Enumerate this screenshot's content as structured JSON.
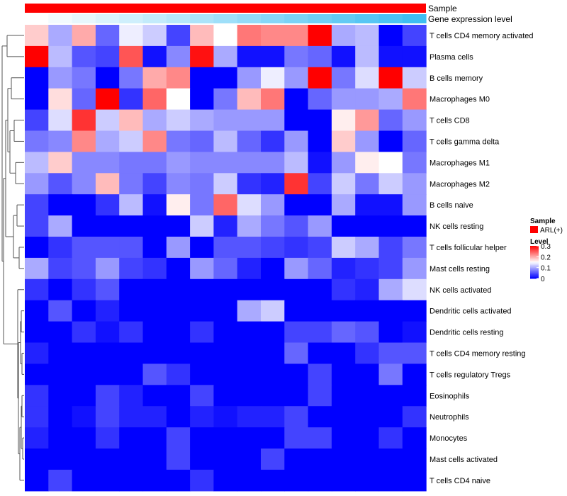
{
  "chart_data": {
    "type": "heatmap",
    "title": "",
    "annotation_tracks": [
      {
        "label": "Sample",
        "color": "#ff0000"
      },
      {
        "label": "Gene expression level",
        "gradient": [
          "#ffffff",
          "#3fbef2"
        ]
      }
    ],
    "rows": [
      "T cells CD4 memory activated",
      "Plasma cells",
      "B cells memory",
      "Macrophages M0",
      "T cells CD8",
      "T cells gamma delta",
      "Macrophages M1",
      "Macrophages M2",
      "B cells naive",
      "NK cells resting",
      "T cells follicular helper",
      "Mast cells resting",
      "NK cells activated",
      "Dendritic cells activated",
      "Dendritic cells resting",
      "T cells CD4 memory resting",
      "T cells regulatory  Tregs",
      "Eosinophils",
      "Neutrophils",
      "Monocytes",
      "Mast cells activated",
      "T cells CD4 naive"
    ],
    "n_columns": 17,
    "values": [
      [
        0.18,
        0.1,
        0.2,
        0.06,
        0.14,
        0.12,
        0.04,
        0.19,
        0.15,
        0.23,
        0.22,
        0.22,
        0.3,
        0.1,
        0.11,
        0.0,
        0.04
      ],
      [
        0.3,
        0.11,
        0.05,
        0.04,
        0.25,
        0.01,
        0.08,
        0.29,
        0.1,
        0.01,
        0.01,
        0.07,
        0.06,
        0.01,
        0.11,
        0.01,
        0.01
      ],
      [
        0.0,
        0.09,
        0.07,
        0.0,
        0.07,
        0.2,
        0.22,
        0.0,
        0.0,
        0.09,
        0.14,
        0.09,
        0.3,
        0.07,
        0.13,
        0.3,
        0.12
      ],
      [
        0.0,
        0.17,
        0.06,
        0.3,
        0.03,
        0.24,
        0.15,
        0.0,
        0.07,
        0.19,
        0.23,
        0.0,
        0.06,
        0.09,
        0.09,
        0.1,
        0.23
      ],
      [
        0.04,
        0.13,
        0.27,
        0.12,
        0.19,
        0.1,
        0.12,
        0.1,
        0.09,
        0.09,
        0.09,
        0.0,
        0.0,
        0.16,
        0.21,
        0.06,
        0.09
      ],
      [
        0.07,
        0.08,
        0.22,
        0.1,
        0.12,
        0.22,
        0.07,
        0.06,
        0.11,
        0.06,
        0.03,
        0.09,
        0.0,
        0.18,
        0.09,
        0.0,
        0.06
      ],
      [
        0.11,
        0.18,
        0.08,
        0.08,
        0.07,
        0.07,
        0.09,
        0.08,
        0.08,
        0.08,
        0.08,
        0.11,
        0.01,
        0.09,
        0.16,
        0.15,
        0.07
      ],
      [
        0.09,
        0.05,
        0.08,
        0.19,
        0.07,
        0.04,
        0.08,
        0.07,
        0.12,
        0.03,
        0.02,
        0.27,
        0.04,
        0.12,
        0.07,
        0.12,
        0.09
      ],
      [
        0.04,
        0.0,
        0.0,
        0.03,
        0.11,
        0.01,
        0.16,
        0.07,
        0.24,
        0.13,
        0.09,
        0.0,
        0.0,
        0.1,
        0.01,
        0.01,
        0.09
      ],
      [
        0.04,
        0.1,
        0.0,
        0.0,
        0.0,
        0.0,
        0.0,
        0.12,
        0.02,
        0.1,
        0.07,
        0.05,
        0.09,
        0.0,
        0.0,
        0.0,
        0.0
      ],
      [
        0.0,
        0.03,
        0.05,
        0.05,
        0.05,
        0.0,
        0.09,
        0.0,
        0.05,
        0.05,
        0.04,
        0.03,
        0.04,
        0.12,
        0.1,
        0.04,
        0.07
      ],
      [
        0.1,
        0.04,
        0.05,
        0.09,
        0.04,
        0.03,
        0.0,
        0.09,
        0.06,
        0.02,
        0.0,
        0.09,
        0.06,
        0.02,
        0.03,
        0.04,
        0.09
      ],
      [
        0.03,
        0.0,
        0.03,
        0.05,
        0.0,
        0.0,
        0.0,
        0.0,
        0.0,
        0.0,
        0.0,
        0.0,
        0.0,
        0.03,
        0.02,
        0.1,
        0.13
      ],
      [
        0.0,
        0.05,
        0.0,
        0.02,
        0.0,
        0.0,
        0.0,
        0.0,
        0.0,
        0.1,
        0.12,
        0.0,
        0.0,
        0.0,
        0.0,
        0.0,
        0.0
      ],
      [
        0.0,
        0.0,
        0.03,
        0.01,
        0.03,
        0.0,
        0.0,
        0.03,
        0.0,
        0.0,
        0.0,
        0.04,
        0.04,
        0.06,
        0.05,
        0.0,
        0.01
      ],
      [
        0.02,
        0.0,
        0.0,
        0.0,
        0.0,
        0.0,
        0.0,
        0.0,
        0.0,
        0.0,
        0.0,
        0.06,
        0.0,
        0.0,
        0.03,
        0.05,
        0.05
      ],
      [
        0.0,
        0.0,
        0.0,
        0.0,
        0.0,
        0.05,
        0.03,
        0.0,
        0.0,
        0.0,
        0.0,
        0.0,
        0.04,
        0.0,
        0.0,
        0.07,
        0.0
      ],
      [
        0.03,
        0.0,
        0.0,
        0.04,
        0.02,
        0.0,
        0.0,
        0.04,
        0.0,
        0.0,
        0.0,
        0.0,
        0.04,
        0.0,
        0.0,
        0.0,
        0.0
      ],
      [
        0.03,
        0.0,
        0.01,
        0.04,
        0.02,
        0.02,
        0.0,
        0.02,
        0.01,
        0.02,
        0.02,
        0.04,
        0.0,
        0.0,
        0.0,
        0.0,
        0.03
      ],
      [
        0.02,
        0.0,
        0.0,
        0.03,
        0.0,
        0.0,
        0.04,
        0.0,
        0.0,
        0.0,
        0.0,
        0.04,
        0.04,
        0.0,
        0.0,
        0.03,
        0.0
      ],
      [
        0.0,
        0.0,
        0.0,
        0.0,
        0.0,
        0.0,
        0.04,
        0.0,
        0.0,
        0.0,
        0.04,
        0.0,
        0.0,
        0.0,
        0.0,
        0.0,
        0.0
      ],
      [
        0.0,
        0.04,
        0.0,
        0.0,
        0.0,
        0.0,
        0.0,
        0.03,
        0.0,
        0.0,
        0.0,
        0.0,
        0.0,
        0.0,
        0.0,
        0.0,
        0.0
      ]
    ],
    "color_scale": {
      "min": 0,
      "mid": 0.15,
      "max": 0.3,
      "colors": [
        "#0000ff",
        "#ffffff",
        "#ff0000"
      ]
    },
    "legend": {
      "sample_title": "Sample",
      "sample_entry": "ARL(+)",
      "sample_color": "#ff0000",
      "level_title": "Level",
      "ticks": [
        {
          "label": "0.3",
          "value": 0.3
        },
        {
          "label": "0.2",
          "value": 0.2
        },
        {
          "label": "0.1",
          "value": 0.1
        },
        {
          "label": "0",
          "value": 0
        }
      ],
      "position": "right"
    }
  }
}
